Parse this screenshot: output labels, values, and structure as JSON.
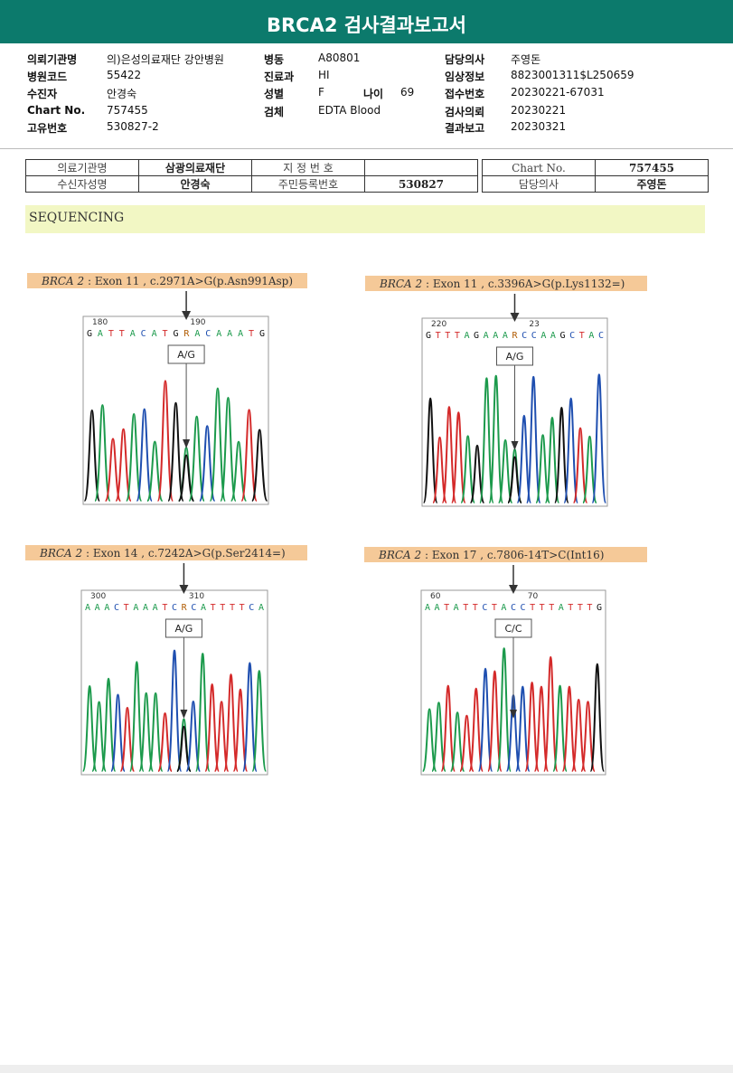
{
  "header": {
    "title": "BRCA2 검사결과보고서"
  },
  "info": [
    [
      {
        "label": "의뢰기관명",
        "value": "의)은성의료재단 강안병원"
      },
      {
        "label": "병동",
        "value": "A80801"
      },
      {
        "label": "담당의사",
        "value": "주영돈"
      }
    ],
    [
      {
        "label": "병원코드",
        "value": "55422"
      },
      {
        "label": "진료과",
        "value": "HI"
      },
      {
        "label": "임상정보",
        "value": "8823001311$L250659"
      }
    ],
    [
      {
        "label": "수진자",
        "value": "안경숙"
      },
      {
        "label": "성별",
        "value": "F"
      },
      {
        "label": "나이",
        "value": "69"
      },
      {
        "label": "접수번호",
        "value": "20230221-67031"
      }
    ],
    [
      {
        "label": "Chart No.",
        "value": "757455"
      },
      {
        "label": "검체",
        "value": "EDTA Blood"
      },
      {
        "label": "검사의뢰",
        "value": "20230221"
      }
    ],
    [
      {
        "label": "고유번호",
        "value": "530827-2"
      },
      {
        "label": "결과보고",
        "value": "20230321"
      }
    ]
  ],
  "table": {
    "rows": [
      [
        "의료기관명",
        "삼광의료재단",
        "지 정 번 호",
        "Chart No.",
        "757455"
      ],
      [
        "수신자성명",
        "안경숙",
        "주민등록번호",
        "530827",
        "담당의사",
        "주영돈"
      ]
    ]
  },
  "section": "SEQUENCING",
  "panels": [
    {
      "gene": "BRCA 2",
      "label": " : Exon 11 , c.2971A>G(p.Asn991Asp)",
      "positions": [
        "180",
        "190"
      ],
      "sequence": "GATTACATGRACAAATG",
      "call": "A/G"
    },
    {
      "gene": "BRCA 2",
      "label": " : Exon 11 , c.3396A>G(p.Lys1132=)",
      "positions": [
        "220",
        "23"
      ],
      "sequence": "GTTTAGAAARCCAAGCTAC",
      "call": "A/G"
    },
    {
      "gene": "BRCA 2",
      "label": " : Exon 14 , c.7242A>G(p.Ser2414=)",
      "positions": [
        "300",
        "310"
      ],
      "sequence": "AAACTAAATCRCATTTTCA",
      "call": "A/G"
    },
    {
      "gene": "BRCA 2",
      "label": " : Exon 17 , c.7806-14T>C(Int16)",
      "positions": [
        "60",
        "70"
      ],
      "sequence": "AATATTCTACCTTTATTTG",
      "call": "C/C"
    }
  ]
}
